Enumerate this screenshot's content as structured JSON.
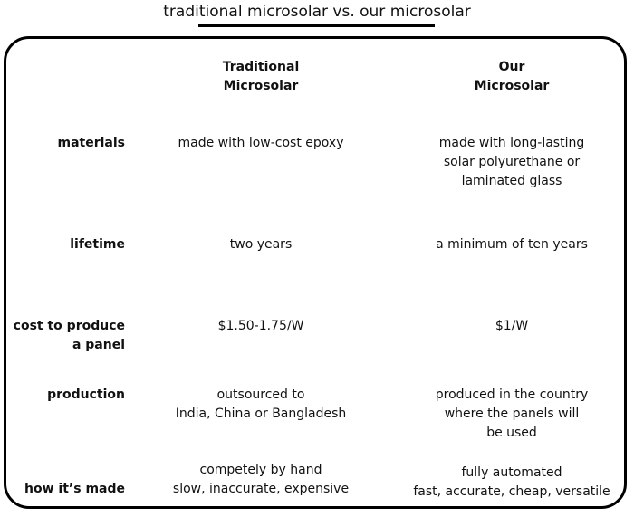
{
  "title": "traditional microsolar vs. our microsolar",
  "columns": {
    "traditional": "Traditional\nMicrosolar",
    "ours": "Our\nMicrosolar"
  },
  "rows": [
    {
      "label": "materials",
      "traditional": "made with low-cost epoxy",
      "ours": "made with long-lasting\nsolar polyurethane or\nlaminated glass"
    },
    {
      "label": "lifetime",
      "traditional": "two years",
      "ours": "a minimum of ten years"
    },
    {
      "label": "cost to produce\na panel",
      "traditional": "$1.50-1.75/W",
      "ours": "$1/W"
    },
    {
      "label": "production",
      "traditional": "outsourced to\nIndia, China or Bangladesh",
      "ours": "produced in the country\nwhere the panels will\nbe used"
    },
    {
      "label": "how it’s made",
      "traditional": "competely by hand\nslow, inaccurate, expensive",
      "ours": "fully automated\nfast, accurate, cheap, versatile"
    }
  ]
}
